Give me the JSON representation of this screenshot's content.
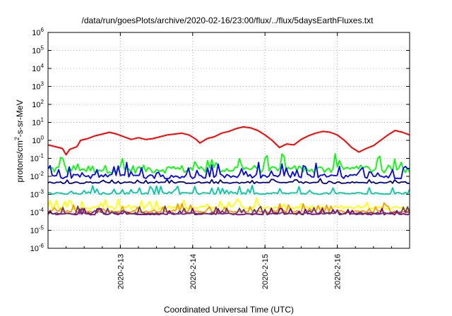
{
  "chart_data": {
    "type": "line",
    "title": "/data/run/goesPlots/archive/2020-02-16/23:00/flux/../flux/5daysEarthFluxes.txt",
    "xlabel": "Coordinated Universal Time (UTC)",
    "ylabel_main": "protons/cm",
    "ylabel_sup": "2",
    "ylabel_rest": "-s-sr-MeV",
    "y_scale": "log",
    "ylim": [
      1e-06,
      1000000.0
    ],
    "y_tick_exponents": [
      "-6",
      "-5",
      "-4",
      "-3",
      "-2",
      "-1",
      "0",
      "1",
      "2",
      "3",
      "4",
      "5",
      "6"
    ],
    "y_tick_base": "10",
    "xlim_days": [
      12.0,
      17.0
    ],
    "x_ticks": [
      {
        "label": "2020-2-13",
        "day": 13
      },
      {
        "label": "2020-2-14",
        "day": 14
      },
      {
        "label": "2020-2-15",
        "day": 15
      },
      {
        "label": "2020-2-16",
        "day": 16
      }
    ],
    "grid": true,
    "series": [
      {
        "color": "#ff0000",
        "base": 0.0,
        "amp": 0.55,
        "spike": 0.0,
        "pts": [
          [
            12.0,
            -0.25
          ],
          [
            12.1,
            -0.35
          ],
          [
            12.2,
            -0.45
          ],
          [
            12.25,
            -0.8
          ],
          [
            12.3,
            -0.5
          ],
          [
            12.4,
            -0.35
          ],
          [
            12.45,
            0.0
          ],
          [
            12.55,
            0.1
          ],
          [
            12.65,
            0.25
          ],
          [
            12.75,
            0.35
          ],
          [
            12.85,
            0.45
          ],
          [
            12.95,
            0.35
          ],
          [
            13.05,
            0.2
          ],
          [
            13.15,
            0.05
          ],
          [
            13.25,
            0.15
          ],
          [
            13.35,
            0.05
          ],
          [
            13.45,
            0.1
          ],
          [
            13.55,
            0.2
          ],
          [
            13.65,
            0.3
          ],
          [
            13.75,
            0.35
          ],
          [
            13.85,
            0.4
          ],
          [
            13.95,
            0.3
          ],
          [
            14.05,
            0.05
          ],
          [
            14.1,
            -0.15
          ],
          [
            14.2,
            0.1
          ],
          [
            14.3,
            0.2
          ],
          [
            14.4,
            0.4
          ],
          [
            14.5,
            0.5
          ],
          [
            14.6,
            0.65
          ],
          [
            14.7,
            0.75
          ],
          [
            14.8,
            0.7
          ],
          [
            14.9,
            0.55
          ],
          [
            15.0,
            0.3
          ],
          [
            15.1,
            0.0
          ],
          [
            15.2,
            -0.4
          ],
          [
            15.3,
            -0.2
          ],
          [
            15.4,
            -0.25
          ],
          [
            15.5,
            0.05
          ],
          [
            15.6,
            0.25
          ],
          [
            15.7,
            0.4
          ],
          [
            15.8,
            0.5
          ],
          [
            15.9,
            0.45
          ],
          [
            16.0,
            0.3
          ],
          [
            16.1,
            0.0
          ],
          [
            16.2,
            -0.4
          ],
          [
            16.3,
            -0.65
          ],
          [
            16.4,
            -0.45
          ],
          [
            16.5,
            -0.3
          ],
          [
            16.6,
            0.0
          ],
          [
            16.7,
            0.3
          ],
          [
            16.8,
            0.55
          ],
          [
            16.9,
            0.45
          ],
          [
            17.0,
            0.3
          ]
        ]
      },
      {
        "color": "#00ff00",
        "base": -1.6,
        "amp": 0.45,
        "spike": 0.9
      },
      {
        "color": "#0000ff",
        "base": -2.0,
        "amp": 0.25,
        "spike": 0.7
      },
      {
        "color": "#000080",
        "base": -2.35,
        "amp": 0.1,
        "spike": 0.2
      },
      {
        "color": "#00c8a0",
        "base": -2.95,
        "amp": 0.1,
        "spike": 0.45
      },
      {
        "color": "#ffff00",
        "base": -3.75,
        "amp": 0.15,
        "spike": 0.5
      },
      {
        "color": "#ff9900",
        "base": -3.95,
        "amp": 0.1,
        "spike": 0.45
      },
      {
        "color": "#800080",
        "base": -4.1,
        "amp": 0.08,
        "spike": 0.35
      },
      {
        "color": "#6b3a6b",
        "base": -4.05,
        "amp": 0.1,
        "spike": 0.4
      }
    ]
  }
}
